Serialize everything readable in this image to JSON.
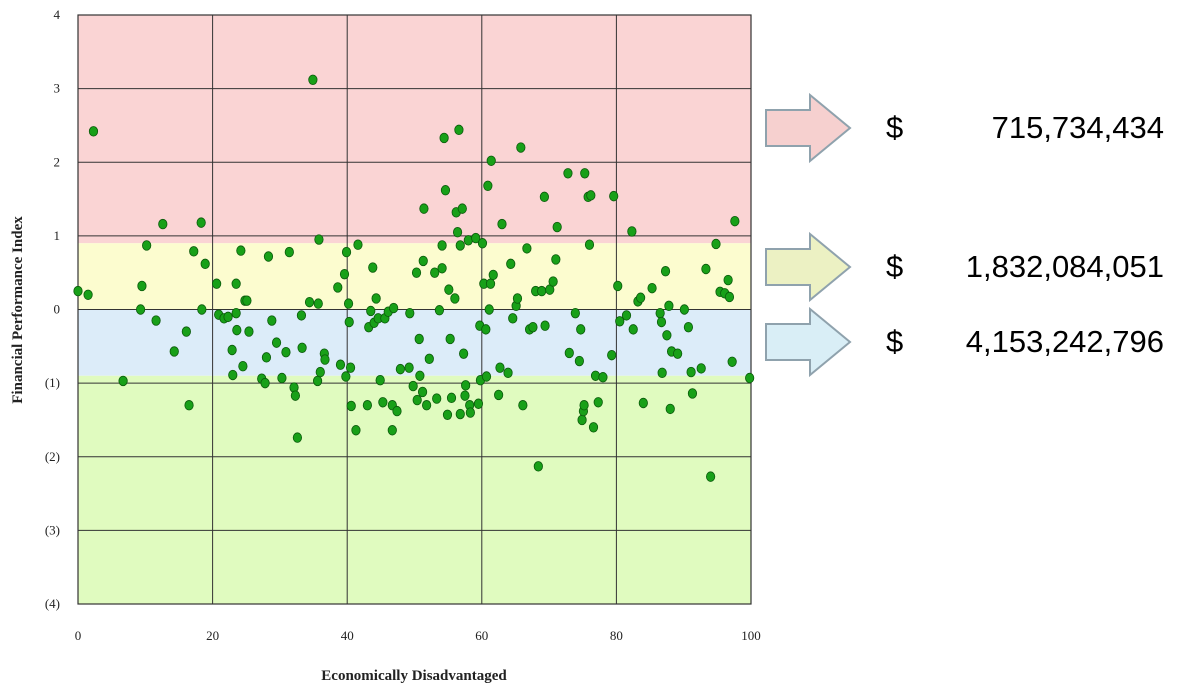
{
  "chart_data": {
    "type": "scatter",
    "xlabel": "Economically Disadvantaged",
    "ylabel": "Financial Performance Index",
    "xlim": [
      0,
      100
    ],
    "ylim": [
      -4,
      4
    ],
    "x_ticks": [
      "0",
      "20",
      "40",
      "60",
      "80",
      "100"
    ],
    "y_ticks": [
      "(4)",
      "(3)",
      "(2)",
      "(1)",
      "0",
      "1",
      "2",
      "3",
      "4"
    ],
    "grid": true,
    "bands": [
      {
        "from": 0.9,
        "to": 4,
        "color": "#fad4d4"
      },
      {
        "from": 0.0,
        "to": 0.9,
        "color": "#fcfccf"
      },
      {
        "from": -0.9,
        "to": 0.0,
        "color": "#dcecf9"
      },
      {
        "from": -4,
        "to": -0.9,
        "color": "#e0fbbf"
      }
    ],
    "points": [
      [
        0,
        0.25
      ],
      [
        1.5,
        0.2
      ],
      [
        2.3,
        2.42
      ],
      [
        6.7,
        -0.97
      ],
      [
        9.3,
        0.0
      ],
      [
        9.5,
        0.32
      ],
      [
        10.2,
        0.87
      ],
      [
        11.6,
        -0.15
      ],
      [
        12.6,
        1.16
      ],
      [
        14.3,
        -0.57
      ],
      [
        16.1,
        -0.3
      ],
      [
        16.5,
        -1.3
      ],
      [
        17.2,
        0.79
      ],
      [
        18.3,
        1.18
      ],
      [
        18.4,
        0.0
      ],
      [
        18.9,
        0.62
      ],
      [
        20.6,
        0.35
      ],
      [
        20.9,
        -0.07
      ],
      [
        21.7,
        -0.12
      ],
      [
        22.3,
        -0.1
      ],
      [
        22.9,
        -0.55
      ],
      [
        23.0,
        -0.89
      ],
      [
        23.5,
        0.35
      ],
      [
        23.5,
        -0.05
      ],
      [
        23.6,
        -0.28
      ],
      [
        24.2,
        0.8
      ],
      [
        24.5,
        -0.77
      ],
      [
        24.8,
        0.12
      ],
      [
        25.1,
        0.12
      ],
      [
        25.4,
        -0.3
      ],
      [
        27.3,
        -0.94
      ],
      [
        27.8,
        -1.0
      ],
      [
        28.0,
        -0.65
      ],
      [
        28.3,
        0.72
      ],
      [
        28.8,
        -0.15
      ],
      [
        29.5,
        -0.45
      ],
      [
        30.3,
        -0.93
      ],
      [
        30.9,
        -0.58
      ],
      [
        31.4,
        0.78
      ],
      [
        32.1,
        -1.06
      ],
      [
        32.3,
        -1.17
      ],
      [
        32.6,
        -1.74
      ],
      [
        33.2,
        -0.08
      ],
      [
        33.3,
        -0.52
      ],
      [
        34.4,
        0.1
      ],
      [
        34.9,
        3.12
      ],
      [
        35.6,
        -0.97
      ],
      [
        35.7,
        0.08
      ],
      [
        35.8,
        0.95
      ],
      [
        36.0,
        -0.85
      ],
      [
        36.6,
        -0.6
      ],
      [
        36.7,
        -0.68
      ],
      [
        38.6,
        0.3
      ],
      [
        39.0,
        -0.75
      ],
      [
        39.6,
        0.48
      ],
      [
        39.8,
        -0.91
      ],
      [
        39.9,
        0.78
      ],
      [
        40.2,
        0.08
      ],
      [
        40.3,
        -0.17
      ],
      [
        40.5,
        -0.79
      ],
      [
        40.6,
        -1.31
      ],
      [
        41.3,
        -1.64
      ],
      [
        41.6,
        0.88
      ],
      [
        43.0,
        -1.3
      ],
      [
        43.2,
        -0.24
      ],
      [
        43.5,
        -0.02
      ],
      [
        43.8,
        0.57
      ],
      [
        44.0,
        -0.18
      ],
      [
        44.3,
        0.15
      ],
      [
        44.6,
        -0.12
      ],
      [
        44.9,
        -0.96
      ],
      [
        45.3,
        -1.26
      ],
      [
        45.6,
        -0.12
      ],
      [
        46.1,
        -0.03
      ],
      [
        46.7,
        -1.3
      ],
      [
        46.7,
        -1.64
      ],
      [
        46.9,
        0.02
      ],
      [
        47.4,
        -1.38
      ],
      [
        47.9,
        -0.81
      ],
      [
        49.2,
        -0.79
      ],
      [
        49.3,
        -0.05
      ],
      [
        49.8,
        -1.04
      ],
      [
        50.3,
        0.5
      ],
      [
        50.4,
        -1.23
      ],
      [
        50.7,
        -0.4
      ],
      [
        50.8,
        -0.9
      ],
      [
        51.2,
        -1.12
      ],
      [
        51.3,
        0.66
      ],
      [
        51.4,
        1.37
      ],
      [
        51.8,
        -1.3
      ],
      [
        52.2,
        -0.67
      ],
      [
        53.0,
        0.5
      ],
      [
        53.3,
        -1.21
      ],
      [
        53.7,
        -0.01
      ],
      [
        54.1,
        0.56
      ],
      [
        54.1,
        0.87
      ],
      [
        54.4,
        2.33
      ],
      [
        54.6,
        1.62
      ],
      [
        54.9,
        -1.43
      ],
      [
        55.1,
        0.27
      ],
      [
        55.3,
        -0.4
      ],
      [
        55.5,
        -1.2
      ],
      [
        56.0,
        0.15
      ],
      [
        56.2,
        1.32
      ],
      [
        56.4,
        1.05
      ],
      [
        56.6,
        2.44
      ],
      [
        56.8,
        0.87
      ],
      [
        56.8,
        -1.42
      ],
      [
        57.1,
        1.37
      ],
      [
        57.3,
        -0.6
      ],
      [
        57.5,
        -1.17
      ],
      [
        57.6,
        -1.03
      ],
      [
        58.0,
        0.94
      ],
      [
        58.2,
        -1.3
      ],
      [
        58.3,
        -1.4
      ],
      [
        59.1,
        0.97
      ],
      [
        59.5,
        -1.28
      ],
      [
        59.7,
        -0.22
      ],
      [
        59.8,
        -0.96
      ],
      [
        60.1,
        0.9
      ],
      [
        60.3,
        0.35
      ],
      [
        60.6,
        -0.27
      ],
      [
        60.7,
        -0.91
      ],
      [
        60.9,
        1.68
      ],
      [
        61.1,
        0.0
      ],
      [
        61.3,
        0.35
      ],
      [
        61.4,
        2.02
      ],
      [
        61.7,
        0.47
      ],
      [
        62.5,
        -1.16
      ],
      [
        62.7,
        -0.79
      ],
      [
        63.0,
        1.16
      ],
      [
        63.9,
        -0.86
      ],
      [
        64.3,
        0.62
      ],
      [
        64.6,
        -0.12
      ],
      [
        65.1,
        0.05
      ],
      [
        65.3,
        0.15
      ],
      [
        65.8,
        2.2
      ],
      [
        66.1,
        -1.3
      ],
      [
        66.7,
        0.83
      ],
      [
        67.1,
        -0.27
      ],
      [
        67.6,
        -0.24
      ],
      [
        68.0,
        0.25
      ],
      [
        68.4,
        -2.13
      ],
      [
        68.9,
        0.25
      ],
      [
        69.3,
        1.53
      ],
      [
        69.4,
        -0.22
      ],
      [
        70.1,
        0.27
      ],
      [
        70.6,
        0.38
      ],
      [
        71.0,
        0.68
      ],
      [
        71.2,
        1.12
      ],
      [
        72.8,
        1.85
      ],
      [
        73.0,
        -0.59
      ],
      [
        73.9,
        -0.05
      ],
      [
        74.5,
        -0.7
      ],
      [
        74.7,
        -0.27
      ],
      [
        74.9,
        -1.5
      ],
      [
        75.1,
        -1.38
      ],
      [
        75.2,
        -1.3
      ],
      [
        75.3,
        1.85
      ],
      [
        75.8,
        1.53
      ],
      [
        76.0,
        0.88
      ],
      [
        76.2,
        1.55
      ],
      [
        76.6,
        -1.6
      ],
      [
        76.9,
        -0.9
      ],
      [
        77.3,
        -1.26
      ],
      [
        78.0,
        -0.92
      ],
      [
        79.3,
        -0.62
      ],
      [
        79.6,
        1.54
      ],
      [
        80.2,
        0.32
      ],
      [
        80.5,
        -0.16
      ],
      [
        81.5,
        -0.08
      ],
      [
        82.3,
        1.06
      ],
      [
        82.5,
        -0.27
      ],
      [
        83.2,
        0.11
      ],
      [
        83.6,
        0.16
      ],
      [
        84.0,
        -1.27
      ],
      [
        85.3,
        0.29
      ],
      [
        86.5,
        -0.05
      ],
      [
        86.7,
        -0.17
      ],
      [
        86.8,
        -0.86
      ],
      [
        87.3,
        0.52
      ],
      [
        87.5,
        -0.35
      ],
      [
        87.8,
        0.05
      ],
      [
        88.0,
        -1.35
      ],
      [
        88.2,
        -0.57
      ],
      [
        89.1,
        -0.6
      ],
      [
        90.1,
        0.0
      ],
      [
        90.7,
        -0.24
      ],
      [
        91.1,
        -0.85
      ],
      [
        91.3,
        -1.14
      ],
      [
        92.6,
        -0.8
      ],
      [
        93.3,
        0.55
      ],
      [
        94.0,
        -2.27
      ],
      [
        94.8,
        0.89
      ],
      [
        95.4,
        0.24
      ],
      [
        96.1,
        0.22
      ],
      [
        96.6,
        0.4
      ],
      [
        96.8,
        0.17
      ],
      [
        97.2,
        -0.71
      ],
      [
        97.6,
        1.2
      ],
      [
        99.8,
        -0.93
      ]
    ]
  },
  "callouts": [
    {
      "currency": "$",
      "amount": "715,734,434",
      "color": "#f6d0cf"
    },
    {
      "currency": "$",
      "amount": "1,832,084,051",
      "color": "#ecf1c3"
    },
    {
      "currency": "$",
      "amount": "4,153,242,796",
      "color": "#d9eef6"
    }
  ]
}
